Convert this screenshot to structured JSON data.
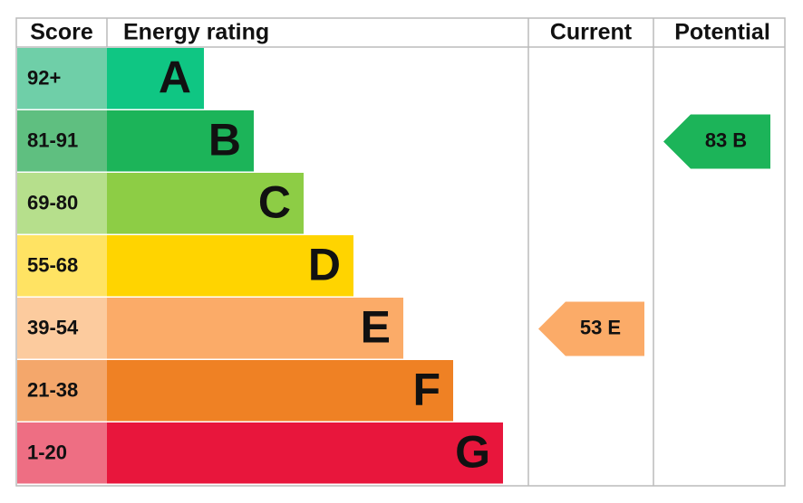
{
  "header": {
    "score": "Score",
    "rating": "Energy rating",
    "current": "Current",
    "potential": "Potential"
  },
  "bands": [
    {
      "score": "92+",
      "letter": "A",
      "color": "#0fc683",
      "score_color": "#6fcfa8"
    },
    {
      "score": "81-91",
      "letter": "B",
      "color": "#1cb459",
      "score_color": "#5fbf80"
    },
    {
      "score": "69-80",
      "letter": "C",
      "color": "#8dcd45",
      "score_color": "#b6df8c"
    },
    {
      "score": "55-68",
      "letter": "D",
      "color": "#ffd400",
      "score_color": "#ffe363"
    },
    {
      "score": "39-54",
      "letter": "E",
      "color": "#fbab68",
      "score_color": "#fccb9e"
    },
    {
      "score": "21-38",
      "letter": "F",
      "color": "#ef8124",
      "score_color": "#f4a76b"
    },
    {
      "score": "1-20",
      "letter": "G",
      "color": "#e8163c",
      "score_color": "#ee6e83"
    }
  ],
  "current": {
    "score": 53,
    "rating": "E"
  },
  "potential": {
    "score": 83,
    "rating": "B"
  }
}
